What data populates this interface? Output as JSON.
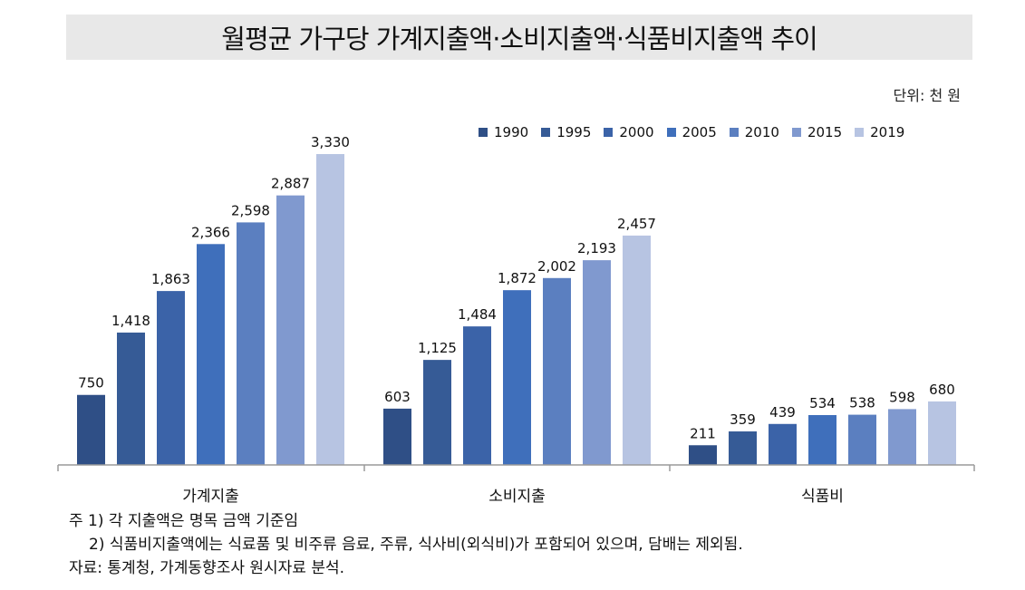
{
  "title": "월평균 가구당 가계지출액·소비지출액·식품비지출액 추이",
  "unit_label": "단위: 천 원",
  "notes": [
    "주 1) 각 지출액은 명목 금액 기준임",
    "2) 식품비지출액에는 식료품 및 비주류 음료, 주류, 식사비(외식비)가 포함되어 있으며, 담배는 제외됨.",
    "자료: 통계청, 가계동향조사 원시자료 분석."
  ],
  "chart_data": {
    "type": "bar",
    "categories": [
      "가계지출",
      "소비지출",
      "식품비"
    ],
    "series": [
      {
        "name": "1990",
        "color": "#2f4f86",
        "values": [
          750,
          603,
          211
        ],
        "labels": [
          "750",
          "603",
          "211"
        ]
      },
      {
        "name": "1995",
        "color": "#365b96",
        "values": [
          1418,
          1125,
          359
        ],
        "labels": [
          "1,418",
          "1,125",
          "359"
        ]
      },
      {
        "name": "2000",
        "color": "#3b63a8",
        "values": [
          1863,
          1484,
          439
        ],
        "labels": [
          "1,863",
          "1,484",
          "439"
        ]
      },
      {
        "name": "2005",
        "color": "#3f6fbb",
        "values": [
          2366,
          1872,
          534
        ],
        "labels": [
          "2,366",
          "1,872",
          "534"
        ]
      },
      {
        "name": "2010",
        "color": "#5b7fc0",
        "values": [
          2598,
          2002,
          538
        ],
        "labels": [
          "2,598",
          "2,002",
          "538"
        ]
      },
      {
        "name": "2015",
        "color": "#8099cf",
        "values": [
          2887,
          2193,
          598
        ],
        "labels": [
          "2,887",
          "2,193",
          "598"
        ]
      },
      {
        "name": "2019",
        "color": "#b7c4e2",
        "values": [
          3330,
          2457,
          680
        ],
        "labels": [
          "3,330",
          "2,457",
          "680"
        ]
      }
    ],
    "ylim": [
      0,
      3330
    ],
    "grid": false,
    "legend_position": "top-right"
  }
}
